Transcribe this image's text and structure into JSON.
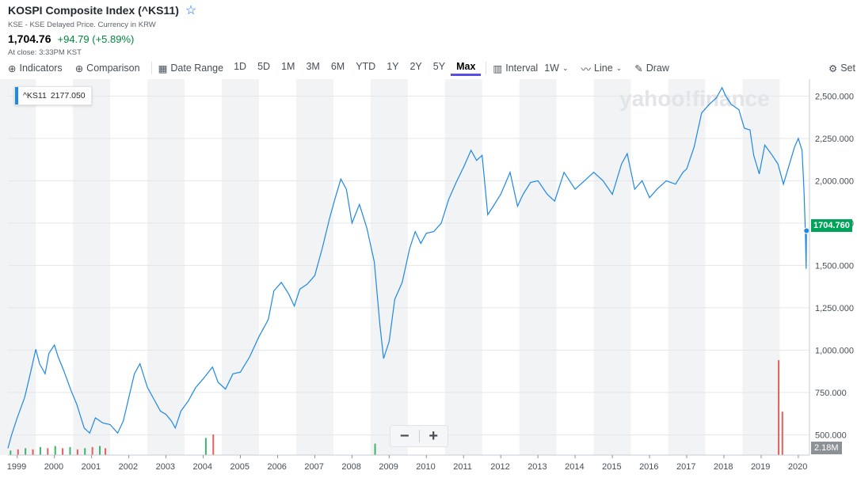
{
  "header": {
    "title": "KOSPI Composite Index (^KS11)",
    "subtitle": "KSE - KSE Delayed Price. Currency in KRW",
    "price": "1,704.76",
    "change": "+94.79 (+5.89%)",
    "close_note": "At close: 3:33PM KST"
  },
  "toolbar": {
    "indicators": "Indicators",
    "comparison": "Comparison",
    "date_range": "Date Range",
    "ranges": [
      "1D",
      "5D",
      "1M",
      "3M",
      "6M",
      "YTD",
      "1Y",
      "2Y",
      "5Y",
      "Max"
    ],
    "active_range": "Max",
    "interval_label": "Interval",
    "interval_value": "1W",
    "line_label": "Line",
    "draw_label": "Draw",
    "settings_label": "Set"
  },
  "tooltip": {
    "symbol": "^KS11",
    "value": "2177.050"
  },
  "watermark": "yahoo!finance",
  "last_price_label": "1704.760",
  "volume_label": "2.18M",
  "zoom": {
    "minus": "−",
    "plus": "+"
  },
  "colors": {
    "line": "#1e88e5",
    "up": "#00873c",
    "last": "#00a35a",
    "vol_up": "#3db46d",
    "vol_down": "#e0605b",
    "band": "#f2f3f4"
  },
  "chart_data": {
    "type": "line",
    "title": "KOSPI Composite Index (^KS11)",
    "xlabel": "",
    "ylabel": "",
    "xlim": [
      1998.75,
      2020.3
    ],
    "ylim": [
      380,
      2600
    ],
    "x_ticks": [
      1999,
      2000,
      2001,
      2002,
      2003,
      2004,
      2005,
      2006,
      2007,
      2008,
      2009,
      2010,
      2011,
      2012,
      2013,
      2014,
      2015,
      2016,
      2017,
      2018,
      2019,
      2020
    ],
    "y_ticks": [
      500,
      750,
      1000,
      1250,
      1500,
      1750,
      2000,
      2250,
      2500
    ],
    "y_tick_labels": [
      "500.000",
      "750.000",
      "1,000.000",
      "1,250.000",
      "1,500.000",
      "1,750.000",
      "2,000.000",
      "2,250.000",
      "2,500.000"
    ],
    "series": [
      {
        "name": "^KS11",
        "x": [
          1998.75,
          1998.85,
          1999.0,
          1999.2,
          1999.35,
          1999.5,
          1999.6,
          1999.75,
          1999.85,
          2000.0,
          2000.1,
          2000.25,
          2000.45,
          2000.6,
          2000.8,
          2000.95,
          2001.1,
          2001.3,
          2001.5,
          2001.7,
          2001.85,
          2002.0,
          2002.15,
          2002.3,
          2002.5,
          2002.7,
          2002.85,
          2003.0,
          2003.15,
          2003.25,
          2003.4,
          2003.6,
          2003.8,
          2004.0,
          2004.25,
          2004.4,
          2004.6,
          2004.8,
          2005.0,
          2005.25,
          2005.5,
          2005.75,
          2005.9,
          2006.1,
          2006.3,
          2006.45,
          2006.6,
          2006.8,
          2007.0,
          2007.2,
          2007.4,
          2007.55,
          2007.7,
          2007.85,
          2008.0,
          2008.2,
          2008.4,
          2008.6,
          2008.75,
          2008.85,
          2009.0,
          2009.15,
          2009.35,
          2009.55,
          2009.7,
          2009.85,
          2010.0,
          2010.2,
          2010.4,
          2010.6,
          2010.8,
          2011.0,
          2011.2,
          2011.35,
          2011.5,
          2011.65,
          2011.8,
          2012.0,
          2012.25,
          2012.45,
          2012.6,
          2012.8,
          2013.0,
          2013.25,
          2013.45,
          2013.7,
          2014.0,
          2014.25,
          2014.5,
          2014.75,
          2015.0,
          2015.25,
          2015.4,
          2015.6,
          2015.8,
          2016.0,
          2016.2,
          2016.45,
          2016.7,
          2016.9,
          2017.0,
          2017.2,
          2017.4,
          2017.6,
          2017.8,
          2017.95,
          2018.05,
          2018.2,
          2018.4,
          2018.55,
          2018.7,
          2018.8,
          2018.95,
          2019.1,
          2019.3,
          2019.45,
          2019.6,
          2019.75,
          2019.9,
          2020.0,
          2020.1,
          2020.15,
          2020.19,
          2020.21,
          2020.22
        ],
        "values": [
          420,
          500,
          600,
          720,
          860,
          1005,
          920,
          860,
          980,
          1030,
          960,
          880,
          760,
          680,
          540,
          510,
          600,
          570,
          560,
          510,
          580,
          720,
          860,
          920,
          780,
          700,
          640,
          620,
          580,
          540,
          640,
          700,
          780,
          830,
          900,
          810,
          770,
          860,
          870,
          960,
          1080,
          1180,
          1350,
          1400,
          1330,
          1260,
          1360,
          1390,
          1440,
          1600,
          1780,
          1900,
          2010,
          1950,
          1750,
          1860,
          1720,
          1520,
          1150,
          950,
          1050,
          1300,
          1400,
          1600,
          1700,
          1630,
          1690,
          1700,
          1750,
          1890,
          1990,
          2080,
          2180,
          2120,
          2150,
          1800,
          1850,
          1920,
          2050,
          1850,
          1920,
          1990,
          2000,
          1920,
          1880,
          2050,
          1950,
          2000,
          2050,
          2000,
          1920,
          2100,
          2160,
          1950,
          2000,
          1900,
          1950,
          2000,
          1980,
          2050,
          2070,
          2200,
          2400,
          2450,
          2490,
          2550,
          2500,
          2450,
          2420,
          2310,
          2300,
          2150,
          2040,
          2210,
          2150,
          2100,
          1980,
          2090,
          2200,
          2250,
          2180,
          1950,
          1700,
          1480,
          1704.76
        ]
      }
    ],
    "volume": {
      "note": "volume bars (millions, approximate)",
      "x": [
        1998.8,
        1999.0,
        1999.2,
        1999.4,
        1999.6,
        1999.8,
        2000.0,
        2000.2,
        2000.4,
        2000.6,
        2000.8,
        2001.0,
        2001.2,
        2001.35,
        2004.05,
        2004.25,
        2008.6,
        2019.45,
        2019.55
      ],
      "values": [
        0.04,
        0.05,
        0.06,
        0.05,
        0.07,
        0.06,
        0.08,
        0.06,
        0.07,
        0.05,
        0.06,
        0.07,
        0.08,
        0.06,
        0.15,
        0.18,
        0.1,
        0.83,
        0.38
      ],
      "direction": [
        "up",
        "down",
        "up",
        "down",
        "up",
        "down",
        "up",
        "down",
        "up",
        "down",
        "up",
        "down",
        "up",
        "down",
        "up",
        "down",
        "up",
        "down",
        "down"
      ],
      "last_volume": "2.18M"
    },
    "tooltip_point": {
      "series": "^KS11",
      "value": 2177.05
    },
    "last_value": 1704.76
  }
}
